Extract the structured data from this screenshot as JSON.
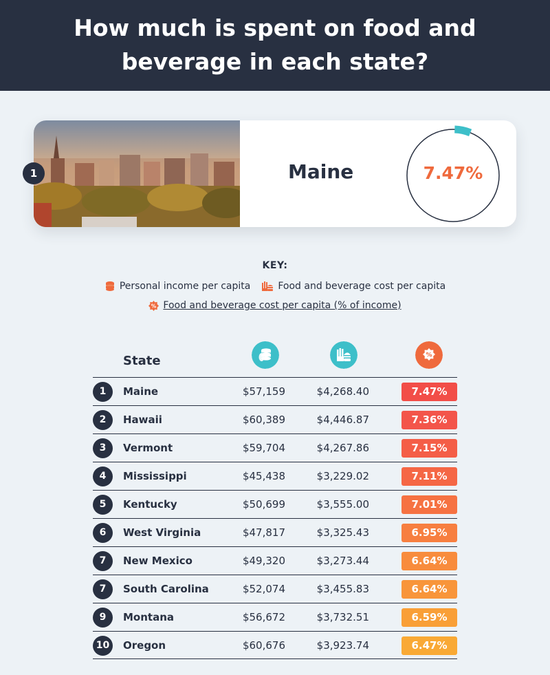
{
  "title": "How much is spent on food and beverage in each state?",
  "featured": {
    "rank": "1",
    "state": "Maine",
    "pct_label": "7.47%",
    "pct_value": 7.47
  },
  "key": {
    "title": "KEY:",
    "income": "Personal income per capita",
    "food": "Food and beverage cost per capita",
    "pct": "Food and beverage cost per capita (% of income)"
  },
  "colors": {
    "navy": "#283041",
    "teal": "#3dbfc9",
    "orange": "#ef6a3d"
  },
  "icons": {
    "income": "coins-icon",
    "food": "burger-fries-icon",
    "pct": "percent-badge-icon"
  },
  "chart_data": {
    "type": "table",
    "columns": [
      "State",
      "Personal income per capita",
      "Food and beverage cost per capita",
      "Food and beverage cost per capita (% of income)"
    ],
    "state_header": "State",
    "rows": [
      {
        "rank": "1",
        "state": "Maine",
        "income": "$57,159",
        "food": "$4,268.40",
        "pct": "7.47%",
        "pct_value": 7.47,
        "color": "#f24e48"
      },
      {
        "rank": "2",
        "state": "Hawaii",
        "income": "$60,389",
        "food": "$4,446.87",
        "pct": "7.36%",
        "pct_value": 7.36,
        "color": "#f3554a"
      },
      {
        "rank": "3",
        "state": "Vermont",
        "income": "$59,704",
        "food": "$4,267.86",
        "pct": "7.15%",
        "pct_value": 7.15,
        "color": "#f45e47"
      },
      {
        "rank": "4",
        "state": "Mississippi",
        "income": "$45,438",
        "food": "$3,229.02",
        "pct": "7.11%",
        "pct_value": 7.11,
        "color": "#f56745"
      },
      {
        "rank": "5",
        "state": "Kentucky",
        "income": "$50,699",
        "food": "$3,555.00",
        "pct": "7.01%",
        "pct_value": 7.01,
        "color": "#f67242"
      },
      {
        "rank": "6",
        "state": "West Virginia",
        "income": "$47,817",
        "food": "$3,325.43",
        "pct": "6.95%",
        "pct_value": 6.95,
        "color": "#f77f40"
      },
      {
        "rank": "7",
        "state": "New Mexico",
        "income": "$49,320",
        "food": "$3,273.44",
        "pct": "6.64%",
        "pct_value": 6.64,
        "color": "#f88c3d"
      },
      {
        "rank": "7",
        "state": "South Carolina",
        "income": "$52,074",
        "food": "$3,455.83",
        "pct": "6.64%",
        "pct_value": 6.64,
        "color": "#f8953a"
      },
      {
        "rank": "9",
        "state": "Montana",
        "income": "$56,672",
        "food": "$3,732.51",
        "pct": "6.59%",
        "pct_value": 6.59,
        "color": "#f99f37"
      },
      {
        "rank": "10",
        "state": "Oregon",
        "income": "$60,676",
        "food": "$3,923.74",
        "pct": "6.47%",
        "pct_value": 6.47,
        "color": "#f9a935"
      }
    ]
  }
}
